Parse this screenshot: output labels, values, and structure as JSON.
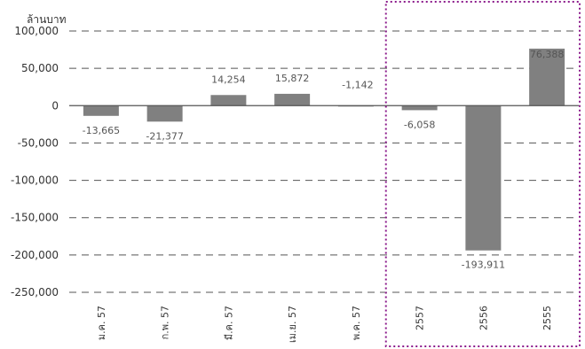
{
  "chart_data": {
    "type": "bar",
    "unit_label": "ล้านบาท",
    "categories": [
      "ม.ค. 57",
      "ก.พ. 57",
      "มี.ค. 57",
      "เม.ย. 57",
      "พ.ค. 57",
      "2557",
      "2556",
      "2555"
    ],
    "values": [
      -13665,
      -21377,
      14254,
      15872,
      -1142,
      -6058,
      -193911,
      76388
    ],
    "data_labels": [
      "-13,665",
      "-21,377",
      "14,254",
      "15,872",
      "-1,142",
      "-6,058",
      "-193,911",
      "76,388"
    ],
    "y_ticks": [
      "100,000",
      "50,000",
      "0",
      "-50,000",
      "-100,000",
      "-150,000",
      "-200,000",
      "-250,000"
    ],
    "ylim": [
      -250000,
      100000
    ],
    "grid": true,
    "highlight_categories": [
      "2557",
      "2556",
      "2555"
    ],
    "colors": {
      "bar": "#808080",
      "grid": "#555555",
      "axis": "#555555",
      "highlight_border": "#8b1a8b"
    }
  }
}
